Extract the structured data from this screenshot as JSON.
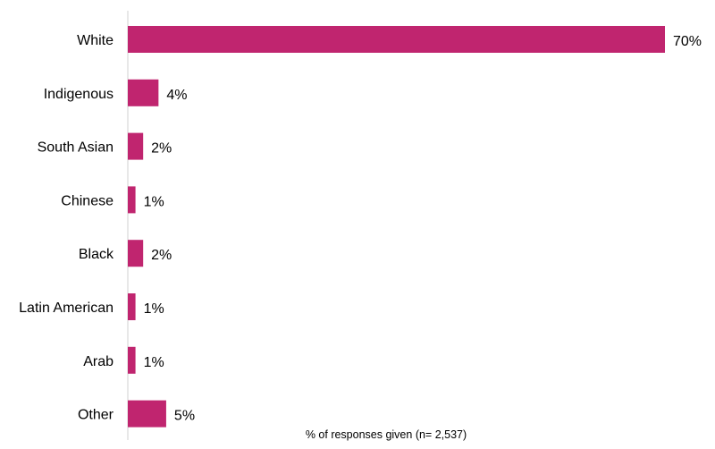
{
  "chart_data": {
    "type": "bar",
    "orientation": "horizontal",
    "categories": [
      "White",
      "Indigenous",
      "South Asian",
      "Chinese",
      "Black",
      "Latin American",
      "Arab",
      "Other"
    ],
    "values": [
      70,
      4,
      2,
      1,
      2,
      1,
      1,
      5
    ],
    "value_labels": [
      "70%",
      "4%",
      "2%",
      "1%",
      "2%",
      "1%",
      "1%",
      "5%"
    ],
    "title": "",
    "xlabel": "% of responses given (n= 2,537)",
    "ylabel": "",
    "xlim": [
      0,
      70
    ],
    "grid": false,
    "legend": "none",
    "bar_color": "#c0256f"
  }
}
